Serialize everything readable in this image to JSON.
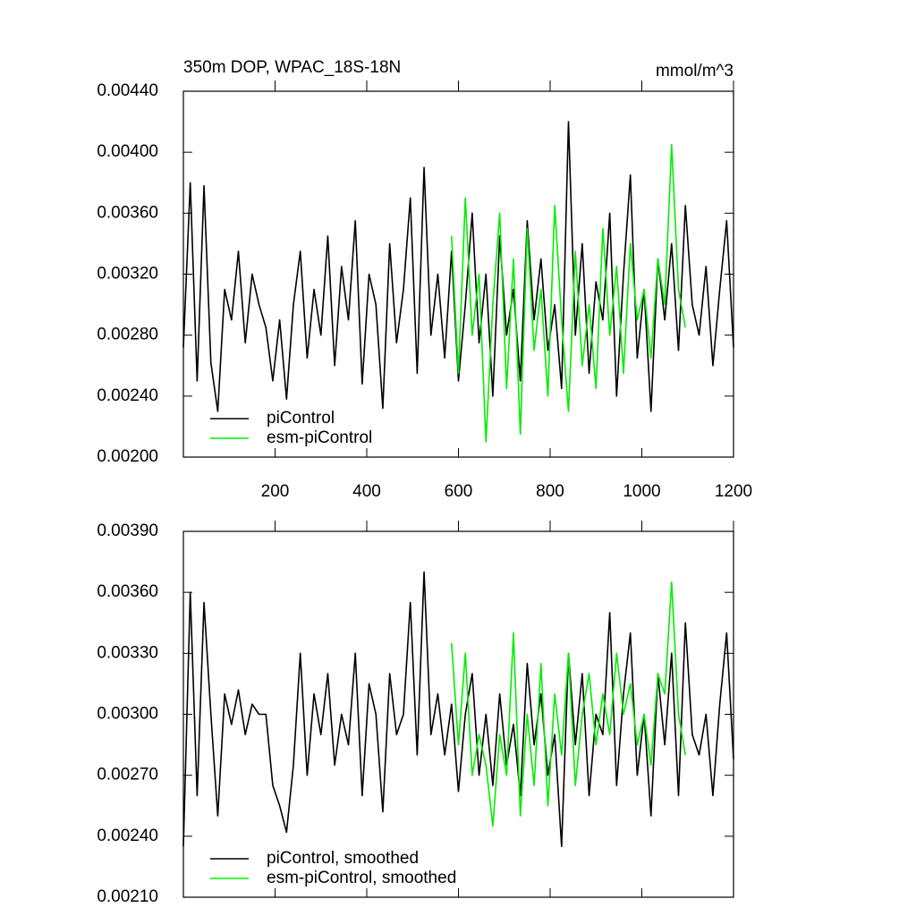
{
  "chart_data": [
    {
      "type": "line",
      "title": "350m DOP, WPAC_18S-18N",
      "units": "mmol/m^3",
      "xlim": [
        0,
        1200
      ],
      "xticks": [
        200,
        400,
        600,
        800,
        1000,
        1200
      ],
      "xtick_labels": true,
      "ylim": [
        0.002,
        0.0044
      ],
      "yticks": [
        {
          "value": 0.002,
          "label": "0.00200"
        },
        {
          "value": 0.0024,
          "label": "0.00240"
        },
        {
          "value": 0.0028,
          "label": "0.00280"
        },
        {
          "value": 0.0032,
          "label": "0.00320"
        },
        {
          "value": 0.0036,
          "label": "0.00360"
        },
        {
          "value": 0.004,
          "label": "0.00400"
        },
        {
          "value": 0.0044,
          "label": "0.00440"
        }
      ],
      "legend": "lower left",
      "series": [
        {
          "name": "piControl",
          "color": "#000000",
          "x": [
            0,
            15,
            30,
            45,
            60,
            75,
            90,
            105,
            120,
            135,
            150,
            165,
            180,
            195,
            210,
            225,
            240,
            255,
            270,
            285,
            300,
            315,
            330,
            345,
            360,
            375,
            390,
            405,
            420,
            435,
            450,
            465,
            480,
            495,
            510,
            525,
            540,
            555,
            570,
            585,
            600,
            615,
            630,
            645,
            660,
            675,
            690,
            705,
            720,
            735,
            750,
            765,
            780,
            795,
            810,
            825,
            840,
            855,
            870,
            885,
            900,
            915,
            930,
            945,
            960,
            975,
            990,
            1005,
            1020,
            1035,
            1050,
            1065,
            1080,
            1095,
            1110,
            1125,
            1140,
            1155,
            1170,
            1185,
            1200
          ],
          "values": [
            0.00272,
            0.0038,
            0.0025,
            0.00378,
            0.00262,
            0.0023,
            0.0031,
            0.0029,
            0.00335,
            0.00275,
            0.0032,
            0.003,
            0.00285,
            0.0025,
            0.0029,
            0.00238,
            0.003,
            0.00335,
            0.00265,
            0.0031,
            0.0028,
            0.00345,
            0.0026,
            0.00325,
            0.0029,
            0.00355,
            0.00248,
            0.0032,
            0.003,
            0.00232,
            0.0034,
            0.00275,
            0.0031,
            0.0037,
            0.00255,
            0.0039,
            0.0028,
            0.0032,
            0.00265,
            0.00335,
            0.0025,
            0.003,
            0.0036,
            0.00275,
            0.0032,
            0.0024,
            0.00345,
            0.0028,
            0.0031,
            0.0025,
            0.00355,
            0.0029,
            0.0033,
            0.0027,
            0.003,
            0.00245,
            0.0042,
            0.0028,
            0.0034,
            0.00255,
            0.00315,
            0.0029,
            0.0036,
            0.0024,
            0.0032,
            0.00385,
            0.00265,
            0.0031,
            0.0023,
            0.0033,
            0.0029,
            0.0034,
            0.0027,
            0.00365,
            0.003,
            0.0028,
            0.00325,
            0.0026,
            0.0031,
            0.00355,
            0.00272
          ]
        },
        {
          "name": "esm-piControl",
          "color": "#00ee00",
          "x": [
            585,
            600,
            615,
            630,
            645,
            660,
            675,
            690,
            705,
            720,
            735,
            750,
            765,
            780,
            795,
            810,
            825,
            840,
            855,
            870,
            885,
            900,
            915,
            930,
            945,
            960,
            975,
            990,
            1005,
            1020,
            1035,
            1050,
            1065,
            1080,
            1095
          ],
          "values": [
            0.00345,
            0.00255,
            0.0037,
            0.0028,
            0.0032,
            0.0021,
            0.003,
            0.0036,
            0.00245,
            0.0033,
            0.00215,
            0.0035,
            0.0027,
            0.0031,
            0.0024,
            0.00365,
            0.0029,
            0.0023,
            0.00335,
            0.0026,
            0.003,
            0.00245,
            0.0035,
            0.0028,
            0.00325,
            0.00255,
            0.0034,
            0.0029,
            0.0031,
            0.00265,
            0.0033,
            0.003,
            0.00405,
            0.0031,
            0.00285
          ]
        }
      ]
    },
    {
      "type": "line",
      "xlim": [
        0,
        1200
      ],
      "xticks": [
        200,
        400,
        600,
        800,
        1000,
        1200
      ],
      "xtick_labels": false,
      "ylim": [
        0.0021,
        0.0039
      ],
      "yticks": [
        {
          "value": 0.0021,
          "label": "0.00210"
        },
        {
          "value": 0.0024,
          "label": "0.00240"
        },
        {
          "value": 0.0027,
          "label": "0.00270"
        },
        {
          "value": 0.003,
          "label": "0.00300"
        },
        {
          "value": 0.0033,
          "label": "0.00330"
        },
        {
          "value": 0.0036,
          "label": "0.00360"
        },
        {
          "value": 0.0039,
          "label": "0.00390"
        }
      ],
      "legend": "lower left",
      "series": [
        {
          "name": "piControl, smoothed",
          "color": "#000000",
          "x": [
            0,
            15,
            30,
            45,
            60,
            75,
            90,
            105,
            120,
            135,
            150,
            165,
            180,
            195,
            210,
            225,
            240,
            255,
            270,
            285,
            300,
            315,
            330,
            345,
            360,
            375,
            390,
            405,
            420,
            435,
            450,
            465,
            480,
            495,
            510,
            525,
            540,
            555,
            570,
            585,
            600,
            615,
            630,
            645,
            660,
            675,
            690,
            705,
            720,
            735,
            750,
            765,
            780,
            795,
            810,
            825,
            840,
            855,
            870,
            885,
            900,
            915,
            930,
            945,
            960,
            975,
            990,
            1005,
            1020,
            1035,
            1050,
            1065,
            1080,
            1095,
            1110,
            1125,
            1140,
            1155,
            1170,
            1185,
            1200
          ],
          "values": [
            0.00235,
            0.0036,
            0.0026,
            0.00355,
            0.003,
            0.0025,
            0.0031,
            0.00295,
            0.00312,
            0.0029,
            0.00305,
            0.003,
            0.003,
            0.00265,
            0.00255,
            0.00242,
            0.00275,
            0.0033,
            0.0027,
            0.0031,
            0.0029,
            0.0032,
            0.00275,
            0.003,
            0.00285,
            0.0033,
            0.0026,
            0.00315,
            0.003,
            0.00252,
            0.0032,
            0.0029,
            0.003,
            0.00355,
            0.0028,
            0.0037,
            0.0029,
            0.0031,
            0.0028,
            0.00305,
            0.00262,
            0.003,
            0.0032,
            0.0027,
            0.003,
            0.00265,
            0.0031,
            0.00275,
            0.00295,
            0.0026,
            0.00325,
            0.00285,
            0.0031,
            0.0027,
            0.0029,
            0.00235,
            0.0033,
            0.00285,
            0.0032,
            0.0026,
            0.003,
            0.0029,
            0.0035,
            0.00265,
            0.0031,
            0.0034,
            0.0027,
            0.003,
            0.0025,
            0.0032,
            0.00285,
            0.0033,
            0.0026,
            0.00345,
            0.0029,
            0.0028,
            0.003,
            0.0026,
            0.00305,
            0.0034,
            0.00278
          ]
        },
        {
          "name": "esm-piControl, smoothed",
          "color": "#00ee00",
          "x": [
            585,
            600,
            615,
            630,
            645,
            660,
            675,
            690,
            705,
            720,
            735,
            750,
            765,
            780,
            795,
            810,
            825,
            840,
            855,
            870,
            885,
            900,
            915,
            930,
            945,
            960,
            975,
            990,
            1005,
            1020,
            1035,
            1050,
            1065,
            1080,
            1095
          ],
          "values": [
            0.00335,
            0.00285,
            0.0033,
            0.0027,
            0.0029,
            0.00275,
            0.00245,
            0.0029,
            0.0027,
            0.0034,
            0.0025,
            0.003,
            0.00265,
            0.00325,
            0.00255,
            0.0031,
            0.0028,
            0.0033,
            0.00265,
            0.003,
            0.0032,
            0.00285,
            0.0031,
            0.0029,
            0.0033,
            0.003,
            0.00315,
            0.00285,
            0.003,
            0.00275,
            0.0032,
            0.0031,
            0.00365,
            0.003,
            0.0028
          ]
        }
      ]
    }
  ]
}
